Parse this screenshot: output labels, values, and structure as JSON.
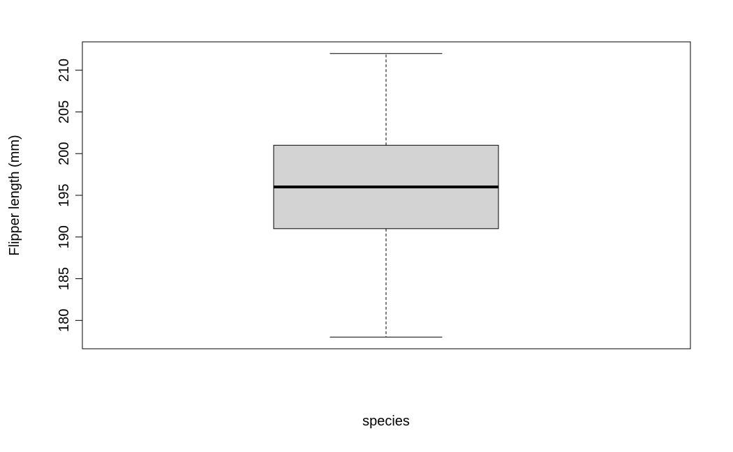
{
  "chart_data": {
    "type": "box",
    "xlabel": "species",
    "ylabel": "Flipper length (mm)",
    "ylim": [
      176.6,
      213.4
    ],
    "y_ticks": [
      180,
      185,
      190,
      195,
      200,
      205,
      210
    ],
    "grid": false,
    "boxes": [
      {
        "whisker_low": 178,
        "q1": 191,
        "median": 196,
        "q3": 201,
        "whisker_high": 212
      }
    ],
    "colors": {
      "box_fill": "#d3d3d3",
      "stroke": "#000000"
    }
  }
}
